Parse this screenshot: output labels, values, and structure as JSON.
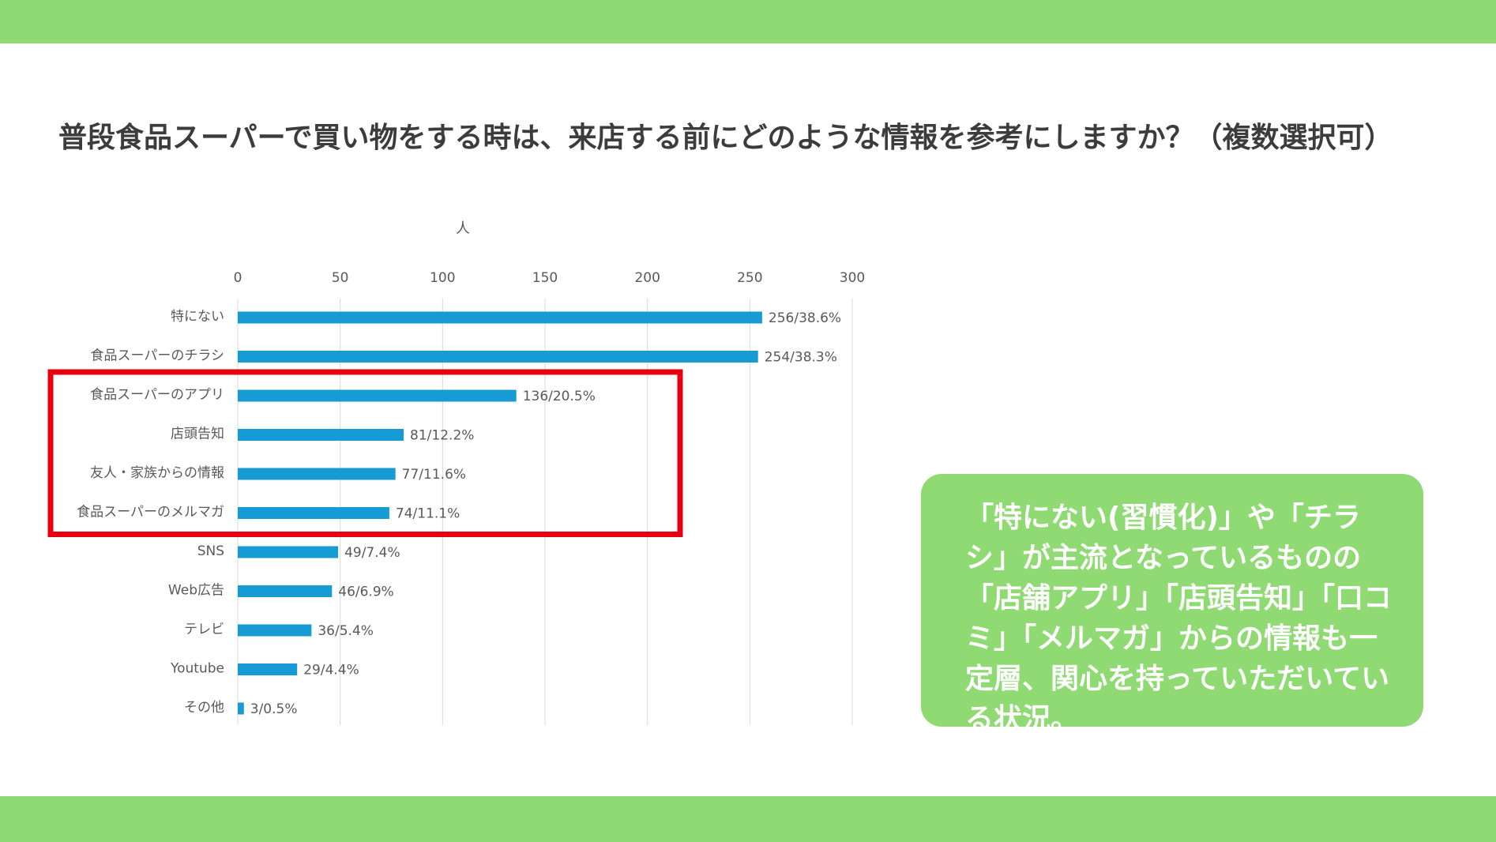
{
  "slide": {
    "title": "普段食品スーパーで買い物をする時は、来店する前にどのような情報を参考にしますか？（複数選択可）",
    "note": "「特にない(習慣化)」や「チラシ」が主流となっているものの「店舗アプリ」「店頭告知」「口コミ」「メルマガ」からの情報も一定層、関心を持っていただいている状況。"
  },
  "colors": {
    "band": "#8fda73",
    "bar": "#169bd5",
    "highlight": "#e60012",
    "grid": "#d9d9d9",
    "axis_text": "#595959"
  },
  "chart_data": {
    "type": "bar",
    "orientation": "horizontal",
    "unit_label": "人",
    "xlim": [
      0,
      300
    ],
    "ticks": [
      0,
      50,
      100,
      150,
      200,
      250,
      300
    ],
    "categories": [
      "特にない",
      "食品スーパーのチラシ",
      "食品スーパーのアプリ",
      "店頭告知",
      "友人・家族からの情報",
      "食品スーパーのメルマガ",
      "SNS",
      "Web広告",
      "テレビ",
      "Youtube",
      "その他"
    ],
    "values": [
      256,
      254,
      136,
      81,
      77,
      74,
      49,
      46,
      36,
      29,
      3
    ],
    "data_labels": [
      "256/38.6%",
      "254/38.3%",
      "136/20.5%",
      "81/12.2%",
      "77/11.6%",
      "74/11.1%",
      "49/7.4%",
      "46/6.9%",
      "36/5.4%",
      "29/4.4%",
      "3/0.5%"
    ],
    "highlighted": [
      "食品スーパーのアプリ",
      "店頭告知",
      "友人・家族からの情報",
      "食品スーパーのメルマガ"
    ],
    "grid": true,
    "legend": "none"
  }
}
